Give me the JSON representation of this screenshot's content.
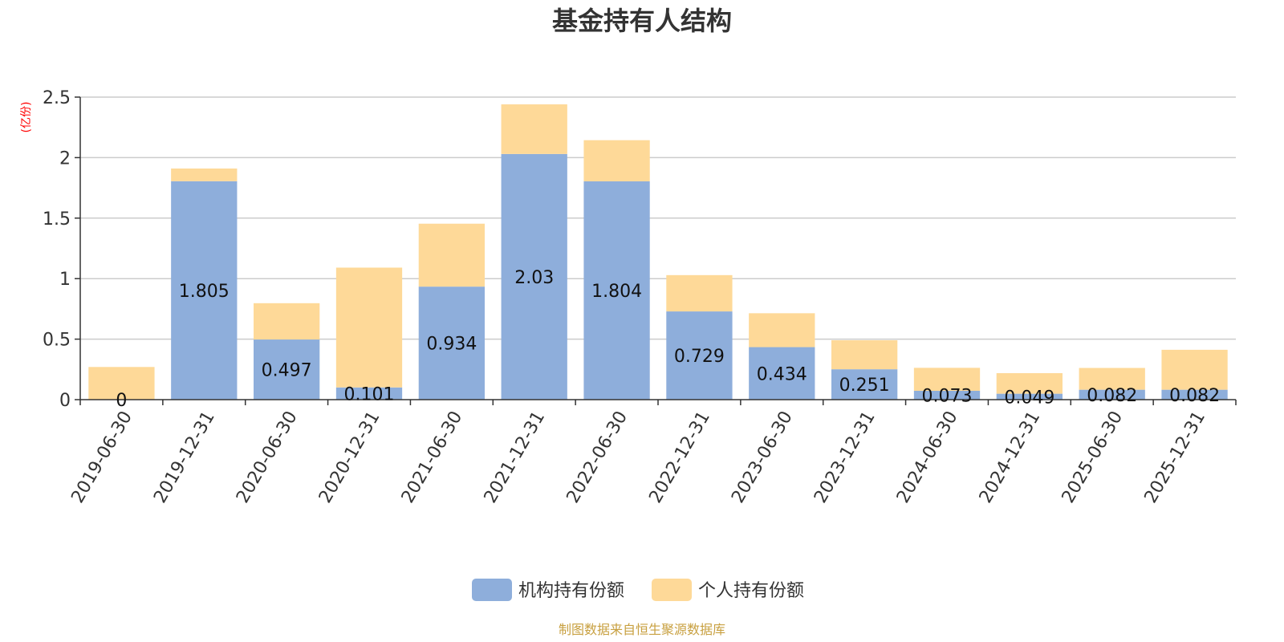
{
  "chart_data": {
    "type": "bar",
    "stacked": true,
    "title": "基金持有人结构",
    "ylabel": "(亿份)",
    "ylim": [
      0,
      2.5
    ],
    "yticks": [
      "0",
      "0.5",
      "1",
      "1.5",
      "2",
      "2.5"
    ],
    "categories": [
      "2019-06-30",
      "2019-12-31",
      "2020-06-30",
      "2020-12-31",
      "2021-06-30",
      "2021-12-31",
      "2022-06-30",
      "2022-12-31",
      "2023-06-30",
      "2023-12-31",
      "2024-06-30",
      "2024-12-31",
      "2025-06-30",
      "2025-12-31"
    ],
    "series": [
      {
        "name": "机构持有份额",
        "color": "#8eaedb",
        "values": [
          0,
          1.805,
          0.497,
          0.101,
          0.934,
          2.03,
          1.804,
          0.729,
          0.434,
          0.251,
          0.073,
          0.049,
          0.082,
          0.082
        ],
        "labels": [
          "0",
          "1.805",
          "0.497",
          "0.101",
          "0.934",
          "2.03",
          "1.804",
          "0.729",
          "0.434",
          "0.251",
          "0.073",
          "0.049",
          "0.082",
          "0.082"
        ]
      },
      {
        "name": "个人持有份额",
        "color": "#fed998",
        "values": [
          0.27,
          0.105,
          0.3,
          0.99,
          0.52,
          0.41,
          0.34,
          0.3,
          0.28,
          0.24,
          0.19,
          0.17,
          0.18,
          0.33
        ]
      }
    ],
    "grid": true,
    "legend": "bottom"
  },
  "source_note": "制图数据来自恒生聚源数据库"
}
